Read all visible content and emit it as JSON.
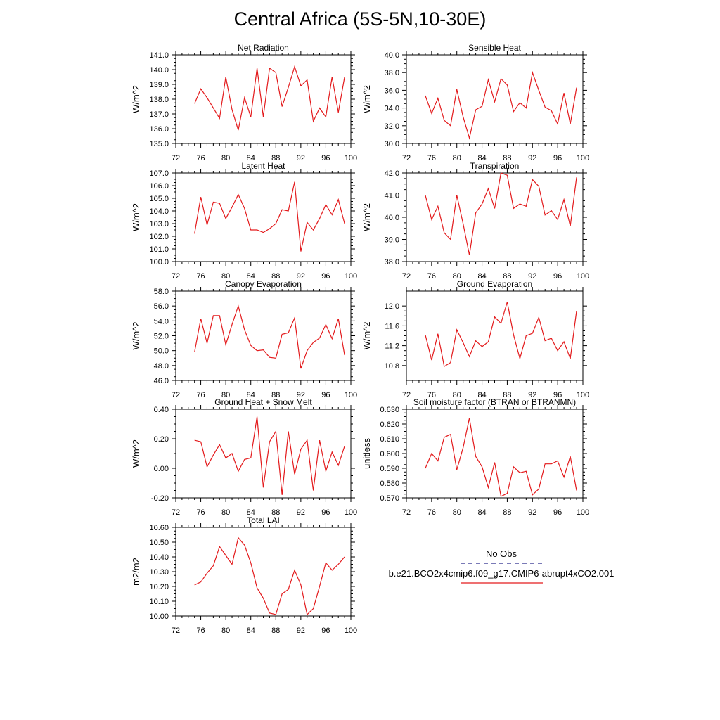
{
  "title": "Central Africa (5S-5N,10-30E)",
  "legend": {
    "entries": [
      {
        "label": "No Obs",
        "color": "#2b2b8c",
        "dash": "dashed"
      },
      {
        "label": "b.e21.BCO2x4cmip6.f09_g17.CMIP6-abrupt4xCO2.001",
        "color": "#e31a1c",
        "dash": "solid"
      }
    ]
  },
  "chart_data": [
    {
      "type": "line",
      "title": "Net Radiation",
      "ylabel": "W/m^2",
      "xlabel": "",
      "xlim": [
        72,
        100
      ],
      "xticks": [
        "72",
        "76",
        "80",
        "84",
        "88",
        "92",
        "96",
        "100"
      ],
      "ylim": [
        135,
        141
      ],
      "yticks": [
        "135.0",
        "136.0",
        "137.0",
        "138.0",
        "139.0",
        "140.0",
        "141.0"
      ],
      "x": [
        75,
        76,
        77,
        78,
        79,
        80,
        81,
        82,
        83,
        84,
        85,
        86,
        87,
        88,
        89,
        90,
        91,
        92,
        93,
        94,
        95,
        96,
        97,
        98,
        99
      ],
      "series": [
        {
          "name": "b.e21.BCO2x4cmip6.f09_g17.CMIP6-abrupt4xCO2.001",
          "color": "#e31a1c",
          "values": [
            137.7,
            138.7,
            138.1,
            137.4,
            136.7,
            139.5,
            137.3,
            135.9,
            138.1,
            136.8,
            140.1,
            136.8,
            140.1,
            139.8,
            137.5,
            138.8,
            140.2,
            138.9,
            139.3,
            136.5,
            137.4,
            136.8,
            139.5,
            137.1,
            139.5
          ]
        }
      ]
    },
    {
      "type": "line",
      "title": "Sensible Heat",
      "ylabel": "W/m^2",
      "xlabel": "",
      "xlim": [
        72,
        100
      ],
      "xticks": [
        "72",
        "76",
        "80",
        "84",
        "88",
        "92",
        "96",
        "100"
      ],
      "ylim": [
        30,
        40
      ],
      "yticks": [
        "30.0",
        "32.0",
        "34.0",
        "36.0",
        "38.0",
        "40.0"
      ],
      "x": [
        75,
        76,
        77,
        78,
        79,
        80,
        81,
        82,
        83,
        84,
        85,
        86,
        87,
        88,
        89,
        90,
        91,
        92,
        93,
        94,
        95,
        96,
        97,
        98,
        99
      ],
      "series": [
        {
          "name": "b.e21.BCO2x4cmip6.f09_g17.CMIP6-abrupt4xCO2.001",
          "color": "#e31a1c",
          "values": [
            35.4,
            33.4,
            35.1,
            32.6,
            32.0,
            36.1,
            33.0,
            30.6,
            33.8,
            34.2,
            37.2,
            34.7,
            37.3,
            36.6,
            33.6,
            34.6,
            34.0,
            38.0,
            36.0,
            34.1,
            33.7,
            32.2,
            35.7,
            32.2,
            36.3
          ]
        }
      ]
    },
    {
      "type": "line",
      "title": "Latent Heat",
      "ylabel": "W/m^2",
      "xlabel": "",
      "xlim": [
        72,
        100
      ],
      "xticks": [
        "72",
        "76",
        "80",
        "84",
        "88",
        "92",
        "96",
        "100"
      ],
      "ylim": [
        100,
        107
      ],
      "yticks": [
        "100.0",
        "101.0",
        "102.0",
        "103.0",
        "104.0",
        "105.0",
        "106.0",
        "107.0"
      ],
      "x": [
        75,
        76,
        77,
        78,
        79,
        80,
        81,
        82,
        83,
        84,
        85,
        86,
        87,
        88,
        89,
        90,
        91,
        92,
        93,
        94,
        95,
        96,
        97,
        98,
        99
      ],
      "series": [
        {
          "name": "b.e21.BCO2x4cmip6.f09_g17.CMIP6-abrupt4xCO2.001",
          "color": "#e31a1c",
          "values": [
            102.2,
            105.1,
            102.9,
            104.7,
            104.6,
            103.4,
            104.3,
            105.3,
            104.2,
            102.5,
            102.5,
            102.3,
            102.6,
            103.0,
            104.1,
            104.0,
            106.3,
            100.8,
            103.1,
            102.5,
            103.4,
            104.5,
            103.7,
            104.9,
            103.0
          ]
        }
      ]
    },
    {
      "type": "line",
      "title": "Transpiration",
      "ylabel": "W/m^2",
      "xlabel": "",
      "xlim": [
        72,
        100
      ],
      "xticks": [
        "72",
        "76",
        "80",
        "84",
        "88",
        "92",
        "96",
        "100"
      ],
      "ylim": [
        38,
        42
      ],
      "yticks": [
        "38.0",
        "39.0",
        "40.0",
        "41.0",
        "42.0"
      ],
      "x": [
        75,
        76,
        77,
        78,
        79,
        80,
        81,
        82,
        83,
        84,
        85,
        86,
        87,
        88,
        89,
        90,
        91,
        92,
        93,
        94,
        95,
        96,
        97,
        98,
        99
      ],
      "series": [
        {
          "name": "b.e21.BCO2x4cmip6.f09_g17.CMIP6-abrupt4xCO2.001",
          "color": "#e31a1c",
          "values": [
            41.0,
            39.9,
            40.5,
            39.3,
            39.0,
            41.0,
            39.7,
            38.3,
            40.2,
            40.6,
            41.3,
            40.4,
            42.0,
            41.9,
            40.4,
            40.6,
            40.5,
            41.7,
            41.4,
            40.1,
            40.3,
            39.9,
            40.8,
            39.6,
            41.8
          ]
        }
      ]
    },
    {
      "type": "line",
      "title": "Canopy Evaporation",
      "ylabel": "W/m^2",
      "xlabel": "",
      "xlim": [
        72,
        100
      ],
      "xticks": [
        "72",
        "76",
        "80",
        "84",
        "88",
        "92",
        "96",
        "100"
      ],
      "ylim": [
        46,
        58
      ],
      "yticks": [
        "46.0",
        "48.0",
        "50.0",
        "52.0",
        "54.0",
        "56.0",
        "58.0"
      ],
      "x": [
        75,
        76,
        77,
        78,
        79,
        80,
        81,
        82,
        83,
        84,
        85,
        86,
        87,
        88,
        89,
        90,
        91,
        92,
        93,
        94,
        95,
        96,
        97,
        98,
        99
      ],
      "series": [
        {
          "name": "b.e21.BCO2x4cmip6.f09_g17.CMIP6-abrupt4xCO2.001",
          "color": "#e31a1c",
          "values": [
            49.8,
            54.3,
            51.0,
            54.7,
            54.7,
            50.8,
            53.5,
            56.0,
            52.8,
            50.7,
            50.0,
            50.1,
            49.1,
            49.0,
            52.2,
            52.4,
            54.4,
            47.6,
            50.0,
            51.1,
            51.7,
            53.5,
            51.6,
            54.3,
            49.4
          ]
        }
      ]
    },
    {
      "type": "line",
      "title": "Ground Evaporation",
      "ylabel": "W/m^2",
      "xlabel": "",
      "xlim": [
        72,
        100
      ],
      "xticks": [
        "72",
        "76",
        "80",
        "84",
        "88",
        "92",
        "96",
        "100"
      ],
      "ylim": [
        10.5,
        12.3
      ],
      "yticks": [
        "10.8",
        "11.2",
        "11.6",
        "12.0"
      ],
      "ytick_values": [
        10.8,
        11.2,
        11.6,
        12.0
      ],
      "x": [
        75,
        76,
        77,
        78,
        79,
        80,
        81,
        82,
        83,
        84,
        85,
        86,
        87,
        88,
        89,
        90,
        91,
        92,
        93,
        94,
        95,
        96,
        97,
        98,
        99
      ],
      "series": [
        {
          "name": "b.e21.BCO2x4cmip6.f09_g17.CMIP6-abrupt4xCO2.001",
          "color": "#e31a1c",
          "values": [
            11.42,
            10.91,
            11.44,
            10.78,
            10.86,
            11.52,
            11.26,
            10.98,
            11.3,
            11.18,
            11.28,
            11.78,
            11.65,
            12.08,
            11.42,
            10.94,
            11.4,
            11.45,
            11.77,
            11.3,
            11.35,
            11.1,
            11.28,
            10.94,
            11.9
          ]
        }
      ]
    },
    {
      "type": "line",
      "title": "Ground Heat + Snow Melt",
      "ylabel": "W/m^2",
      "xlabel": "",
      "xlim": [
        72,
        100
      ],
      "xticks": [
        "72",
        "76",
        "80",
        "84",
        "88",
        "92",
        "96",
        "100"
      ],
      "ylim": [
        -0.2,
        0.4
      ],
      "yticks": [
        "-0.20",
        "0.00",
        "0.20",
        "0.40"
      ],
      "x": [
        75,
        76,
        77,
        78,
        79,
        80,
        81,
        82,
        83,
        84,
        85,
        86,
        87,
        88,
        89,
        90,
        91,
        92,
        93,
        94,
        95,
        96,
        97,
        98,
        99
      ],
      "series": [
        {
          "name": "b.e21.BCO2x4cmip6.f09_g17.CMIP6-abrupt4xCO2.001",
          "color": "#e31a1c",
          "values": [
            0.19,
            0.18,
            0.01,
            0.09,
            0.16,
            0.07,
            0.1,
            -0.02,
            0.06,
            0.07,
            0.35,
            -0.13,
            0.18,
            0.25,
            -0.18,
            0.25,
            -0.04,
            0.13,
            0.19,
            -0.15,
            0.19,
            -0.02,
            0.11,
            0.02,
            0.15
          ]
        }
      ]
    },
    {
      "type": "line",
      "title": "Soil moisture factor (BTRAN or BTRANMN)",
      "ylabel": "unitless",
      "xlabel": "",
      "xlim": [
        72,
        100
      ],
      "xticks": [
        "72",
        "76",
        "80",
        "84",
        "88",
        "92",
        "96",
        "100"
      ],
      "ylim": [
        0.57,
        0.63
      ],
      "yticks": [
        "0.570",
        "0.580",
        "0.590",
        "0.600",
        "0.610",
        "0.620",
        "0.630"
      ],
      "x": [
        75,
        76,
        77,
        78,
        79,
        80,
        81,
        82,
        83,
        84,
        85,
        86,
        87,
        88,
        89,
        90,
        91,
        92,
        93,
        94,
        95,
        96,
        97,
        98,
        99
      ],
      "series": [
        {
          "name": "b.e21.BCO2x4cmip6.f09_g17.CMIP6-abrupt4xCO2.001",
          "color": "#e31a1c",
          "values": [
            0.59,
            0.6,
            0.595,
            0.611,
            0.613,
            0.589,
            0.604,
            0.624,
            0.598,
            0.591,
            0.577,
            0.594,
            0.571,
            0.573,
            0.591,
            0.587,
            0.588,
            0.572,
            0.576,
            0.593,
            0.593,
            0.595,
            0.584,
            0.598,
            0.575
          ]
        }
      ]
    },
    {
      "type": "line",
      "title": "Total LAI",
      "ylabel": "m2/m2",
      "xlabel": "",
      "xlim": [
        72,
        100
      ],
      "xticks": [
        "72",
        "76",
        "80",
        "84",
        "88",
        "92",
        "96",
        "100"
      ],
      "ylim": [
        10.0,
        10.6
      ],
      "yticks": [
        "10.00",
        "10.10",
        "10.20",
        "10.30",
        "10.40",
        "10.50",
        "10.60"
      ],
      "x": [
        75,
        76,
        77,
        78,
        79,
        80,
        81,
        82,
        83,
        84,
        85,
        86,
        87,
        88,
        89,
        90,
        91,
        92,
        93,
        94,
        95,
        96,
        97,
        98,
        99
      ],
      "series": [
        {
          "name": "b.e21.BCO2x4cmip6.f09_g17.CMIP6-abrupt4xCO2.001",
          "color": "#e31a1c",
          "values": [
            10.21,
            10.23,
            10.29,
            10.34,
            10.47,
            10.41,
            10.35,
            10.53,
            10.48,
            10.36,
            10.19,
            10.12,
            10.02,
            10.01,
            10.15,
            10.18,
            10.31,
            10.21,
            10.01,
            10.05,
            10.2,
            10.36,
            10.31,
            10.35,
            10.4
          ]
        }
      ]
    }
  ]
}
